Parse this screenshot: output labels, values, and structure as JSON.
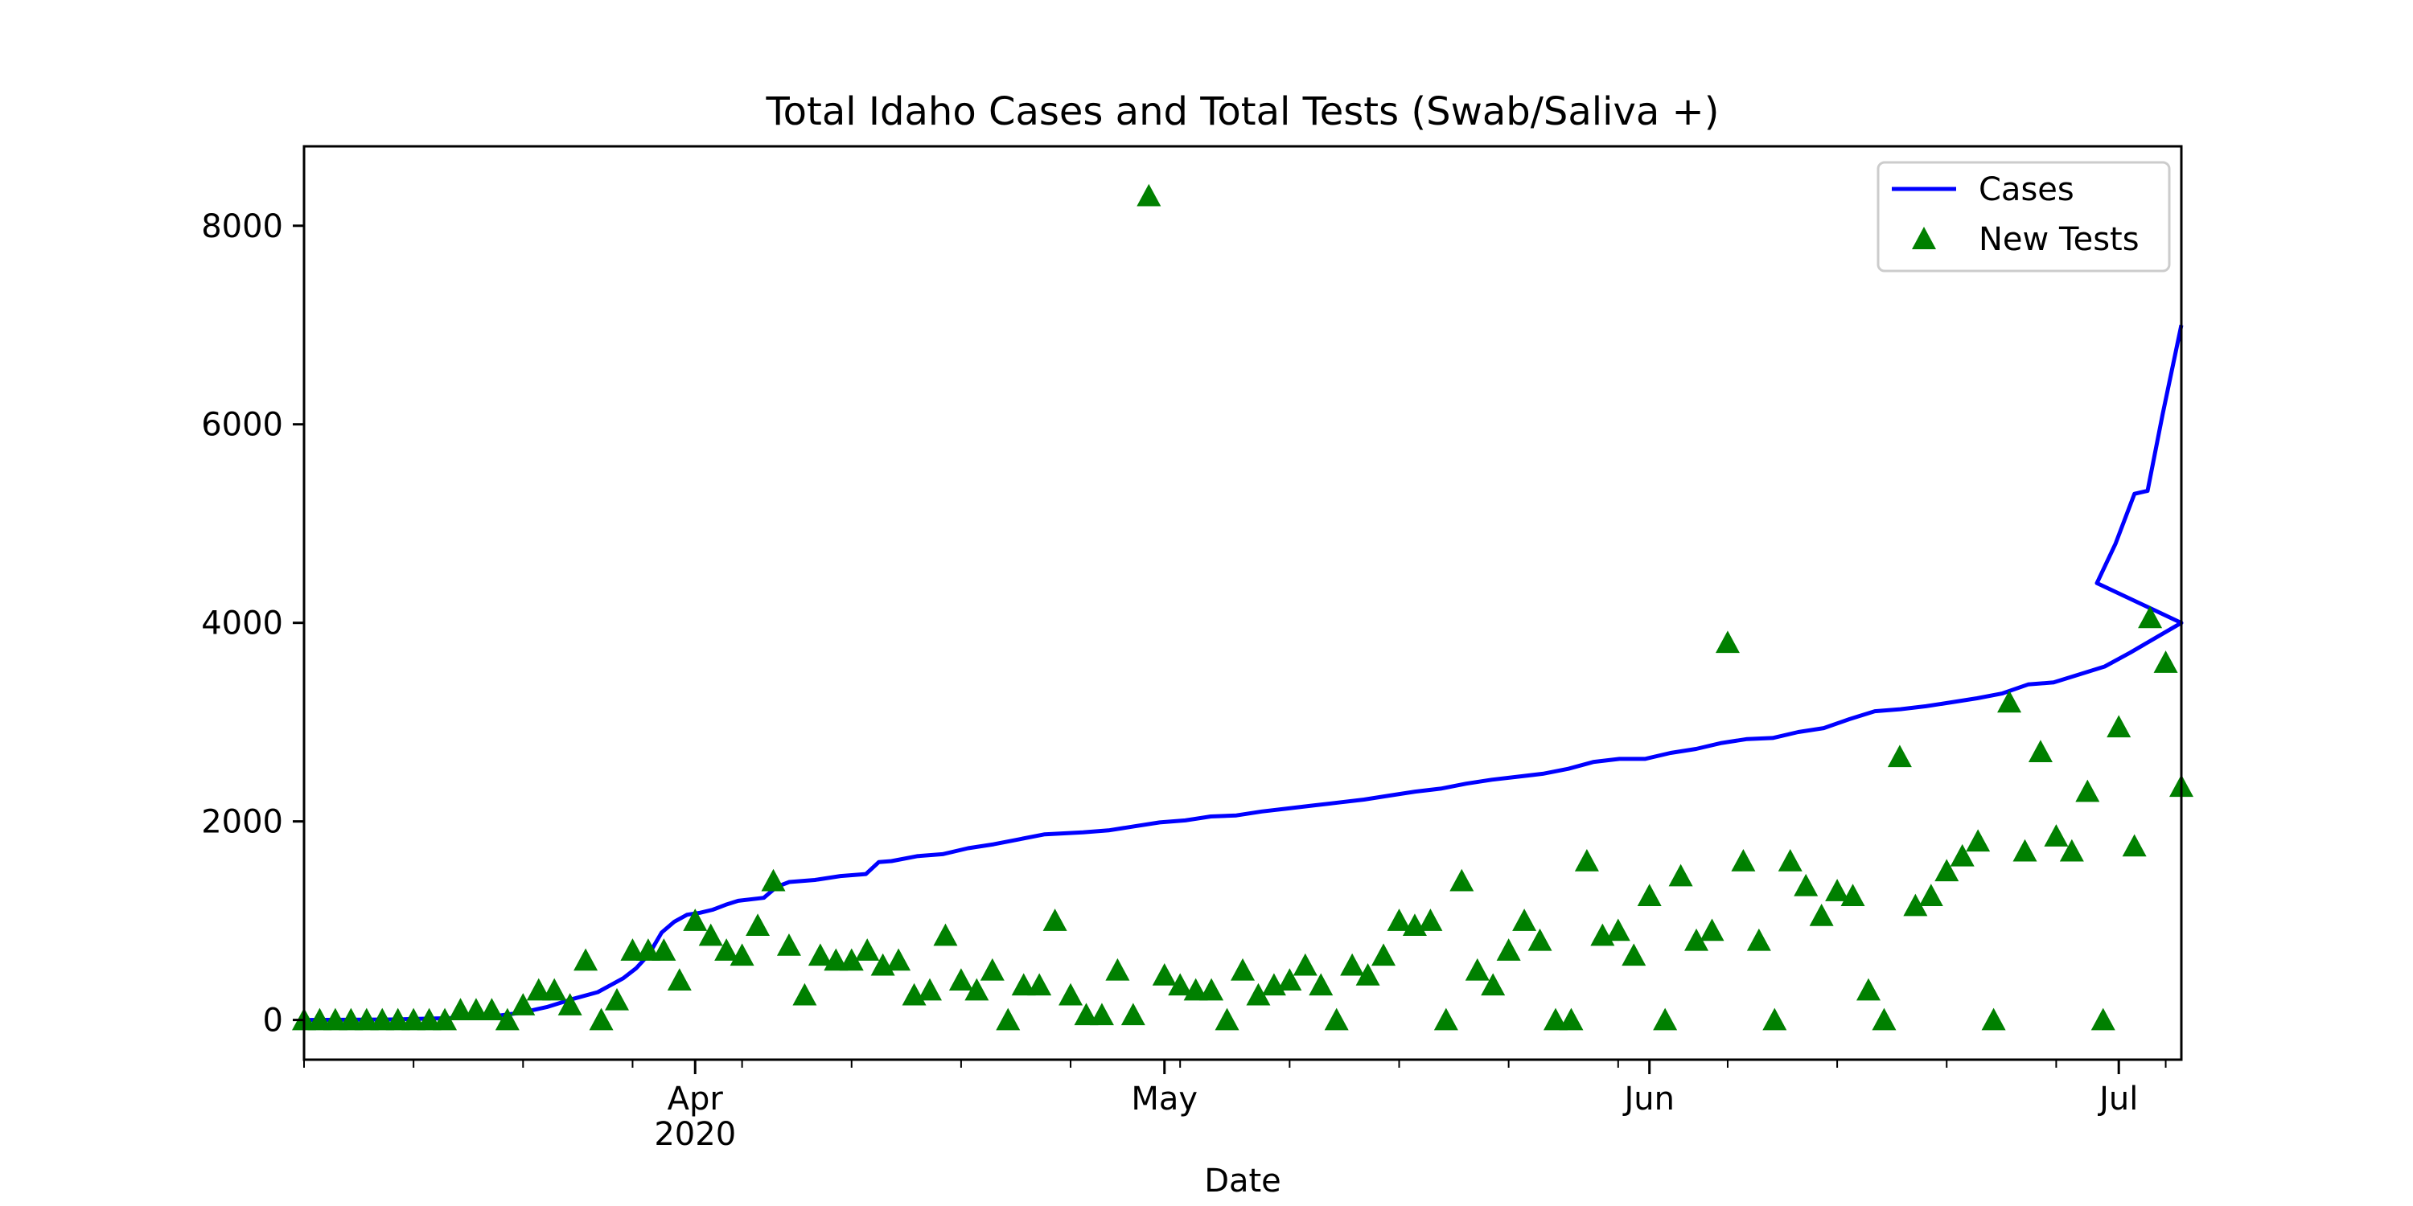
{
  "chart_data": {
    "type": "line",
    "title": "Total Idaho Cases and Total Tests (Swab/Saliva +)",
    "xlabel": "Date",
    "ylabel": "",
    "x_range": [
      "2020-03-07",
      "2020-07-05"
    ],
    "ylim": [
      -400,
      8800
    ],
    "y_ticks": [
      0,
      2000,
      4000,
      6000,
      8000
    ],
    "x_ticks": [
      {
        "date": "2020-04-01",
        "label": "Apr",
        "sublabel": "2020"
      },
      {
        "date": "2020-05-01",
        "label": "May",
        "sublabel": ""
      },
      {
        "date": "2020-06-01",
        "label": "Jun",
        "sublabel": ""
      },
      {
        "date": "2020-07-01",
        "label": "Jul",
        "sublabel": ""
      }
    ],
    "grid": false,
    "legend_position": "top-right",
    "series": [
      {
        "name": "Cases",
        "style": "line",
        "color": "#0000ff",
        "points": [
          [
            "2020-03-07",
            0
          ],
          [
            "2020-03-10",
            0
          ],
          [
            "2020-03-13",
            5
          ],
          [
            "2020-03-16",
            9
          ],
          [
            "2020-03-19",
            20
          ],
          [
            "2020-03-22",
            40
          ],
          [
            "2020-03-24",
            73
          ],
          [
            "2020-03-26",
            150
          ],
          [
            "2020-03-28",
            220
          ],
          [
            "2020-03-30",
            300
          ],
          [
            "2020-04-01",
            450
          ],
          [
            "2020-04-03",
            700
          ],
          [
            "2020-04-05",
            900
          ],
          [
            "2020-04-07",
            1050
          ],
          [
            "2020-04-09",
            1100
          ],
          [
            "2020-04-11",
            1180
          ],
          [
            "2020-04-13",
            1230
          ],
          [
            "2020-04-15",
            1350
          ],
          [
            "2020-04-17",
            1400
          ],
          [
            "2020-04-20",
            1450
          ],
          [
            "2020-04-22",
            1480
          ],
          [
            "2020-04-24",
            1590
          ],
          [
            "2020-04-26",
            1650
          ],
          [
            "2020-04-29",
            1690
          ],
          [
            "2020-05-01",
            1730
          ],
          [
            "2020-05-04",
            1810
          ],
          [
            "2020-05-07",
            1880
          ],
          [
            "2020-05-10",
            1920
          ],
          [
            "2020-05-13",
            1990
          ],
          [
            "2020-05-16",
            2040
          ],
          [
            "2020-05-19",
            2090
          ],
          [
            "2020-05-22",
            2150
          ],
          [
            "2020-05-25",
            2200
          ],
          [
            "2020-05-28",
            2260
          ],
          [
            "2020-05-31",
            2330
          ],
          [
            "2020-06-03",
            2400
          ],
          [
            "2020-06-06",
            2480
          ],
          [
            "2020-06-09",
            2580
          ],
          [
            "2020-06-11",
            2620
          ],
          [
            "2020-06-14",
            2650
          ],
          [
            "2020-06-17",
            2720
          ],
          [
            "2020-06-20",
            2820
          ],
          [
            "2020-06-23",
            2880
          ],
          [
            "2020-06-26",
            3010
          ],
          [
            "2020-06-29",
            3140
          ],
          [
            "2020-07-02",
            3280
          ],
          [
            "2020-07-05",
            3400
          ]
        ]
      }
    ],
    "cases_curve_note_free": true,
    "cases": {
      "name": "Cases",
      "color": "#0000ff",
      "points": [
        [
          "2020-03-07",
          0
        ],
        [
          "2020-03-14",
          5
        ],
        [
          "2020-03-20",
          20
        ],
        [
          "2020-03-23",
          50
        ],
        [
          "2020-03-26",
          130
        ],
        [
          "2020-03-29",
          230
        ],
        [
          "2020-03-31",
          300
        ],
        [
          "2020-04-03",
          520
        ],
        [
          "2020-04-05",
          880
        ],
        [
          "2020-04-07",
          1030
        ],
        [
          "2020-04-09",
          1080
        ],
        [
          "2020-04-11",
          1180
        ],
        [
          "2020-04-13",
          1230
        ],
        [
          "2020-04-15",
          1350
        ],
        [
          "2020-04-17",
          1400
        ],
        [
          "2020-04-20",
          1430
        ],
        [
          "2020-04-22",
          1470
        ],
        [
          "2020-04-24",
          1590
        ],
        [
          "2020-04-27",
          1660
        ],
        [
          "2020-04-30",
          1680
        ],
        [
          "2020-05-02",
          1740
        ],
        [
          "2020-05-06",
          1820
        ],
        [
          "2020-05-09",
          1880
        ],
        [
          "2020-05-13",
          1910
        ],
        [
          "2020-05-17",
          2000
        ],
        [
          "2020-05-20",
          2050
        ],
        [
          "2020-05-24",
          2100
        ],
        [
          "2020-05-28",
          2170
        ],
        [
          "2020-06-01",
          2230
        ],
        [
          "2020-06-05",
          2320
        ],
        [
          "2020-06-09",
          2420
        ],
        [
          "2020-06-12",
          2470
        ],
        [
          "2020-06-15",
          2540
        ],
        [
          "2020-06-18",
          2620
        ],
        [
          "2020-06-21",
          2630
        ],
        [
          "2020-06-24",
          2700
        ],
        [
          "2020-06-27",
          2780
        ],
        [
          "2020-06-30",
          2840
        ]
      ]
    },
    "new_tests": {
      "name": "New Tests",
      "color": "#008000",
      "points": []
    }
  }
}
